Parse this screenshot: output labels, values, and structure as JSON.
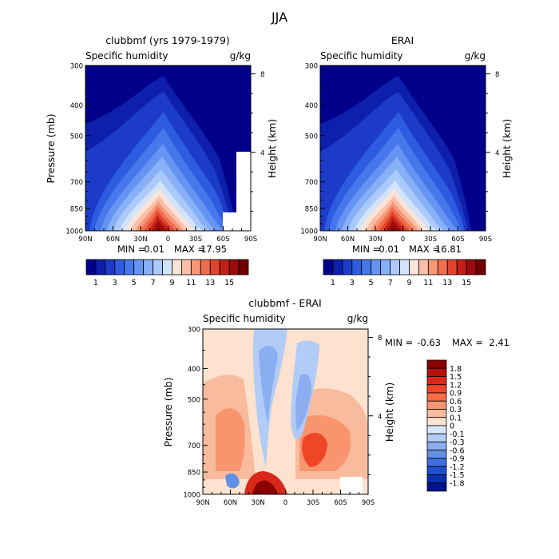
{
  "page_title": "JJA",
  "chart_data": [
    {
      "type": "heatmap",
      "title": "clubbmf (yrs 1979-1979)",
      "variable_label": "Specific humidity",
      "units_label": "g/kg",
      "ylabel": "Pressure (mb)",
      "y2label": "Height (km)",
      "x_ticks": [
        "90N",
        "60N",
        "30N",
        "0",
        "30S",
        "60S",
        "90S"
      ],
      "y_ticks": [
        "300",
        "400",
        "500",
        "700",
        "850",
        "1000"
      ],
      "y2_ticks": [
        "8",
        "4"
      ],
      "ylim": [
        1000,
        300
      ],
      "y_scale": "log",
      "stats": {
        "min_label": "MIN =",
        "min": "0.01",
        "max_label": "MAX =",
        "max": "17.95"
      },
      "colorbar": {
        "orientation": "horizontal",
        "tick_labels": [
          "1",
          "3",
          "5",
          "7",
          "9",
          "11",
          "13",
          "15"
        ],
        "colors": [
          "#00008b",
          "#0d1fab",
          "#1c3bc9",
          "#2d5ce0",
          "#4678ec",
          "#6594f3",
          "#87b0f7",
          "#abc9fa",
          "#d2e3fc",
          "#fbe3d7",
          "#f9bfa7",
          "#f69878",
          "#ee6f4f",
          "#e0442e",
          "#c21f17",
          "#9b0b0b",
          "#710000"
        ]
      }
    },
    {
      "type": "heatmap",
      "title": "ERAI",
      "variable_label": "Specific humidity",
      "units_label": "g/kg",
      "ylabel": "",
      "y2label": "Height (km)",
      "x_ticks": [
        "90N",
        "60N",
        "30N",
        "0",
        "30S",
        "60S",
        "90S"
      ],
      "y_ticks": [
        "300",
        "400",
        "500",
        "700",
        "850",
        "1000"
      ],
      "y2_ticks": [
        "8",
        "4"
      ],
      "ylim": [
        1000,
        300
      ],
      "y_scale": "log",
      "stats": {
        "min_label": "MIN =",
        "min": "0.01",
        "max_label": "MAX =",
        "max": "16.81"
      },
      "colorbar": {
        "orientation": "horizontal",
        "tick_labels": [
          "1",
          "3",
          "5",
          "7",
          "9",
          "11",
          "13",
          "15"
        ],
        "colors": [
          "#00008b",
          "#0d1fab",
          "#1c3bc9",
          "#2d5ce0",
          "#4678ec",
          "#6594f3",
          "#87b0f7",
          "#abc9fa",
          "#d2e3fc",
          "#fbe3d7",
          "#f9bfa7",
          "#f69878",
          "#ee6f4f",
          "#e0442e",
          "#c21f17",
          "#9b0b0b",
          "#710000"
        ]
      }
    },
    {
      "type": "heatmap",
      "title": "clubbmf - ERAI",
      "variable_label": "Specific humidity",
      "units_label": "g/kg",
      "ylabel": "Pressure (mb)",
      "y2label": "Height (km)",
      "x_ticks": [
        "90N",
        "60N",
        "30N",
        "0",
        "30S",
        "60S",
        "90S"
      ],
      "y_ticks": [
        "300",
        "400",
        "500",
        "700",
        "850",
        "1000"
      ],
      "y2_ticks": [
        "8",
        "4"
      ],
      "ylim": [
        1000,
        300
      ],
      "y_scale": "log",
      "stats": {
        "min_label": "MIN =",
        "min": "-0.63",
        "max_label": "MAX =",
        "max": "2.41"
      },
      "colorbar": {
        "orientation": "vertical",
        "tick_labels": [
          "1.8",
          "1.5",
          "1.2",
          "0.9",
          "0.6",
          "0.3",
          "0.1",
          "0",
          "-0.1",
          "-0.3",
          "-0.6",
          "-0.9",
          "-1.2",
          "-1.5",
          "-1.8"
        ],
        "colors": [
          "#8b0000",
          "#b80f0a",
          "#d8281a",
          "#ee4627",
          "#f66c45",
          "#f8956f",
          "#f9bb9d",
          "#fde2cf",
          "#d6e6fb",
          "#b1ccf6",
          "#8aaef0",
          "#6390e7",
          "#3d6fdd",
          "#1e4fcd",
          "#0a30ad",
          "#00148a"
        ]
      }
    }
  ]
}
